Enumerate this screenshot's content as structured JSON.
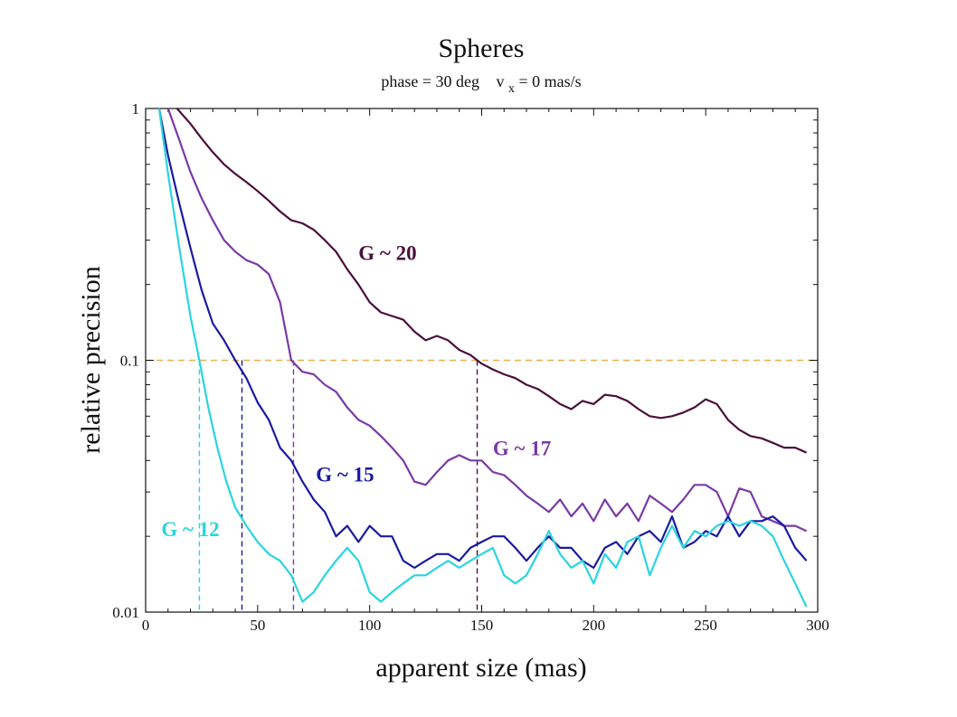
{
  "chart_data": {
    "type": "line",
    "title": "Spheres",
    "subtitle": {
      "prefix": "phase = 30 deg",
      "var": "v",
      "sub": "x",
      "suffix": " = 0 mas/s"
    },
    "xlabel": "apparent size (mas)",
    "ylabel": "relative precision",
    "xlim": [
      0,
      300
    ],
    "ylim": [
      0.01,
      1
    ],
    "yscale": "log",
    "xticks": [
      0,
      50,
      100,
      150,
      200,
      250,
      300
    ],
    "xtick_labels": [
      "0",
      "50",
      "100",
      "150",
      "200",
      "250",
      "300"
    ],
    "yticks": [
      0.01,
      0.1,
      1
    ],
    "ytick_labels": [
      "0.01",
      "0.1",
      "1"
    ],
    "reference_line": {
      "y": 0.1,
      "color": "#e8b04a",
      "style": "dashed"
    },
    "series": [
      {
        "name": "G ~ 20",
        "color": "#4a0f3c",
        "label_at": [
          95,
          0.25
        ],
        "threshold_x": 148,
        "x": [
          14,
          20,
          25,
          30,
          35,
          40,
          45,
          50,
          55,
          60,
          65,
          70,
          75,
          80,
          85,
          90,
          95,
          100,
          105,
          110,
          115,
          120,
          125,
          130,
          135,
          140,
          145,
          150,
          155,
          160,
          165,
          170,
          175,
          180,
          185,
          190,
          195,
          200,
          205,
          210,
          215,
          220,
          225,
          230,
          235,
          240,
          245,
          250,
          255,
          260,
          265,
          270,
          275,
          280,
          285,
          290,
          295
        ],
        "y": [
          1.0,
          0.87,
          0.76,
          0.67,
          0.6,
          0.55,
          0.51,
          0.47,
          0.43,
          0.39,
          0.36,
          0.35,
          0.33,
          0.3,
          0.27,
          0.23,
          0.2,
          0.17,
          0.155,
          0.15,
          0.145,
          0.13,
          0.12,
          0.125,
          0.12,
          0.11,
          0.105,
          0.097,
          0.092,
          0.088,
          0.085,
          0.08,
          0.077,
          0.072,
          0.067,
          0.064,
          0.069,
          0.067,
          0.073,
          0.072,
          0.069,
          0.064,
          0.06,
          0.059,
          0.06,
          0.062,
          0.065,
          0.07,
          0.067,
          0.058,
          0.053,
          0.05,
          0.049,
          0.047,
          0.045,
          0.045,
          0.043
        ]
      },
      {
        "name": "G ~ 17",
        "color": "#7a3aa6",
        "label_at": [
          155,
          0.042
        ],
        "threshold_x": 66,
        "x": [
          10,
          15,
          20,
          25,
          30,
          35,
          40,
          45,
          50,
          55,
          60,
          65,
          70,
          75,
          80,
          85,
          90,
          95,
          100,
          105,
          110,
          115,
          120,
          125,
          130,
          135,
          140,
          145,
          150,
          155,
          160,
          165,
          170,
          175,
          180,
          185,
          190,
          195,
          200,
          205,
          210,
          215,
          220,
          225,
          230,
          235,
          240,
          245,
          250,
          255,
          260,
          265,
          270,
          275,
          280,
          285,
          290,
          295
        ],
        "y": [
          1.0,
          0.75,
          0.56,
          0.44,
          0.36,
          0.3,
          0.27,
          0.25,
          0.24,
          0.22,
          0.17,
          0.1,
          0.09,
          0.088,
          0.08,
          0.075,
          0.065,
          0.058,
          0.055,
          0.05,
          0.045,
          0.04,
          0.033,
          0.032,
          0.036,
          0.04,
          0.042,
          0.04,
          0.04,
          0.036,
          0.035,
          0.032,
          0.029,
          0.027,
          0.025,
          0.028,
          0.024,
          0.027,
          0.023,
          0.028,
          0.024,
          0.027,
          0.023,
          0.029,
          0.027,
          0.025,
          0.028,
          0.032,
          0.032,
          0.03,
          0.024,
          0.031,
          0.03,
          0.024,
          0.023,
          0.022,
          0.022,
          0.021
        ]
      },
      {
        "name": "G ~ 15",
        "color": "#1a1aa0",
        "label_at": [
          76,
          0.033
        ],
        "threshold_x": 43,
        "x": [
          6,
          10,
          15,
          20,
          25,
          30,
          35,
          40,
          45,
          50,
          55,
          60,
          65,
          70,
          75,
          80,
          85,
          90,
          95,
          100,
          105,
          110,
          115,
          120,
          125,
          130,
          135,
          140,
          145,
          150,
          155,
          160,
          165,
          170,
          175,
          180,
          185,
          190,
          195,
          200,
          205,
          210,
          215,
          220,
          225,
          230,
          235,
          240,
          245,
          250,
          255,
          260,
          265,
          270,
          275,
          280,
          285,
          290,
          295
        ],
        "y": [
          1.0,
          0.65,
          0.42,
          0.28,
          0.19,
          0.14,
          0.12,
          0.1,
          0.085,
          0.068,
          0.058,
          0.045,
          0.04,
          0.033,
          0.028,
          0.025,
          0.02,
          0.022,
          0.019,
          0.022,
          0.02,
          0.02,
          0.016,
          0.015,
          0.016,
          0.017,
          0.017,
          0.016,
          0.018,
          0.019,
          0.02,
          0.02,
          0.018,
          0.016,
          0.018,
          0.02,
          0.018,
          0.018,
          0.016,
          0.015,
          0.018,
          0.019,
          0.017,
          0.02,
          0.021,
          0.019,
          0.024,
          0.018,
          0.019,
          0.021,
          0.02,
          0.024,
          0.02,
          0.023,
          0.023,
          0.024,
          0.022,
          0.018,
          0.016
        ]
      },
      {
        "name": "G ~ 12",
        "color": "#2ad4e0",
        "label_at": [
          7,
          0.02
        ],
        "threshold_x": 24,
        "x": [
          6,
          10,
          15,
          20,
          24,
          28,
          32,
          36,
          40,
          45,
          50,
          55,
          60,
          65,
          70,
          75,
          80,
          85,
          90,
          95,
          100,
          105,
          110,
          115,
          120,
          125,
          130,
          135,
          140,
          145,
          150,
          155,
          160,
          165,
          170,
          175,
          180,
          185,
          190,
          195,
          200,
          205,
          210,
          215,
          220,
          225,
          230,
          235,
          240,
          245,
          250,
          255,
          260,
          265,
          270,
          275,
          280,
          285,
          290,
          295
        ],
        "y": [
          1.0,
          0.55,
          0.28,
          0.15,
          0.1,
          0.065,
          0.045,
          0.033,
          0.026,
          0.022,
          0.019,
          0.017,
          0.016,
          0.014,
          0.011,
          0.012,
          0.014,
          0.016,
          0.018,
          0.016,
          0.012,
          0.011,
          0.012,
          0.013,
          0.014,
          0.014,
          0.015,
          0.016,
          0.015,
          0.016,
          0.017,
          0.018,
          0.014,
          0.013,
          0.014,
          0.017,
          0.021,
          0.017,
          0.015,
          0.016,
          0.013,
          0.017,
          0.015,
          0.019,
          0.02,
          0.014,
          0.018,
          0.022,
          0.018,
          0.021,
          0.02,
          0.022,
          0.023,
          0.022,
          0.023,
          0.022,
          0.02,
          0.016,
          0.013,
          0.0105
        ]
      }
    ]
  }
}
